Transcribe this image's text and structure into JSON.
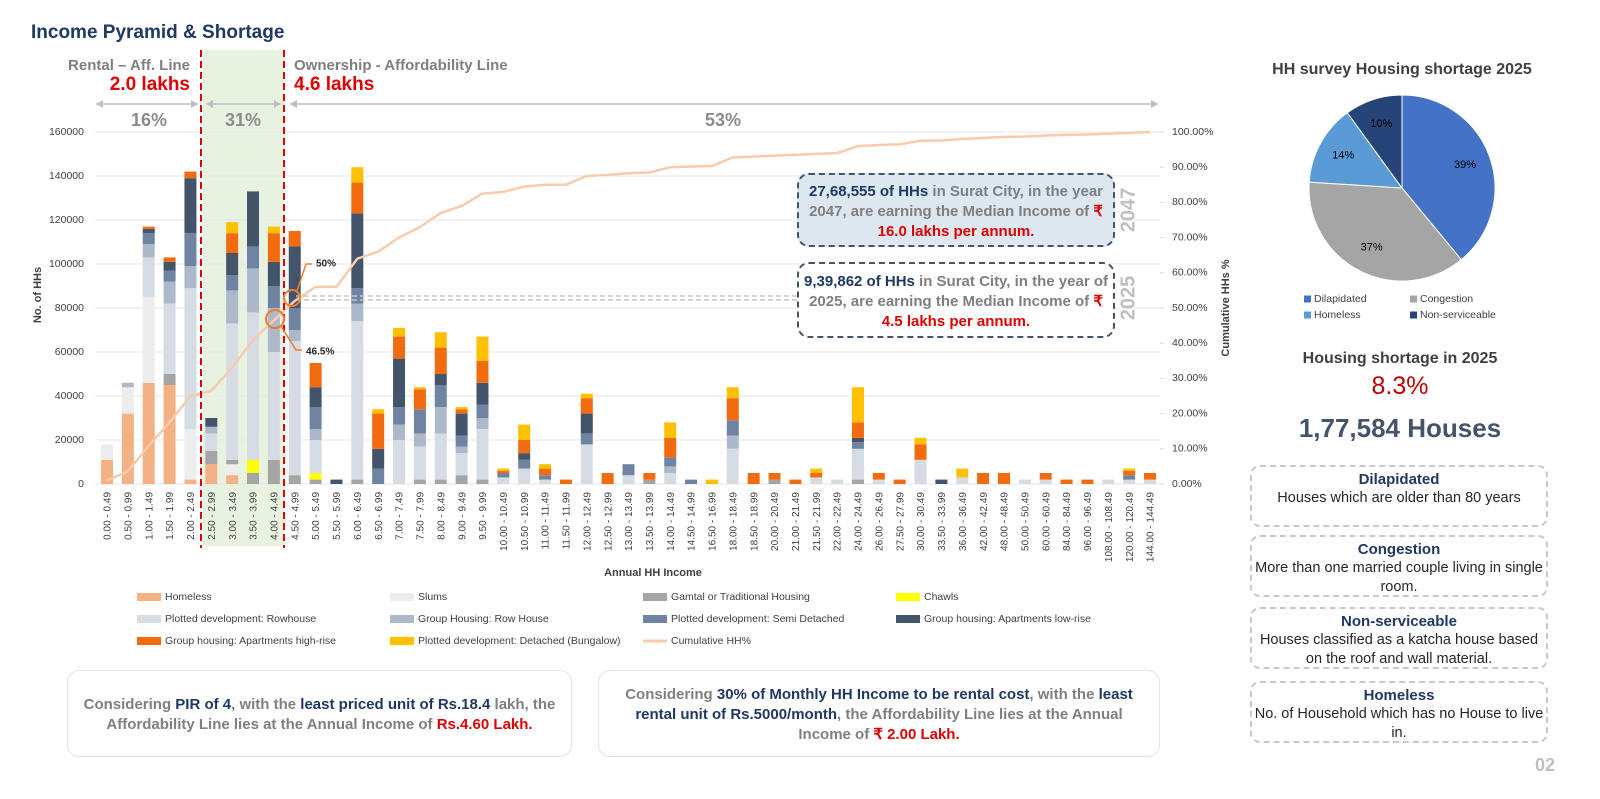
{
  "title": "Income Pyramid & Shortage",
  "chart_data": [
    {
      "type": "bar",
      "stacked": true,
      "xlabel": "Annual HH Income",
      "ylabel": "No. of HHs",
      "y2label": "Cumulative HHs %",
      "categories": [
        "0.00 - 0.49",
        "0.50 - 0.99",
        "1.00 - 1.49",
        "1.50 - 1.99",
        "2.00 - 2.49",
        "2.50 - 2.99",
        "3.00 - 3.49",
        "3.50 - 3.99",
        "4.00 - 4.49",
        "4.50 - 4.99",
        "5.00 - 5.49",
        "5.50 - 5.99",
        "6.00 - 6.49",
        "6.50 - 6.99",
        "7.00 - 7.49",
        "7.50 - 7.99",
        "8.00 - 8.49",
        "9.00 - 9.49",
        "9.50 - 9.99",
        "10.00 - 10.49",
        "10.50 - 10.99",
        "11.00 - 11.49",
        "11.50 - 11.99",
        "12.00 - 12.49",
        "12.50 - 12.99",
        "13.00 - 13.49",
        "13.50 - 13.99",
        "14.00 - 14.49",
        "14.50 - 14.99",
        "16.50 - 16.99",
        "18.00 - 18.49",
        "18.50 - 18.99",
        "20.00 - 20.49",
        "21.00 - 21.49",
        "21.50 - 21.99",
        "22.00 - 22.49",
        "24.00 - 24.49",
        "26.00 - 26.49",
        "27.50 - 27.99",
        "30.00 - 30.49",
        "33.50 - 33.99",
        "36.00 - 36.49",
        "42.00 - 42.49",
        "48.00 - 48.49",
        "50.00 - 50.49",
        "60.00 - 60.49",
        "84.00 - 84.49",
        "96.00 - 96.49",
        "108.00 - 108.49",
        "120.00 - 120.49",
        "144.00 - 144.49"
      ],
      "series": [
        {
          "name": "Homeless",
          "color": "#f4b183",
          "values": [
            11000,
            32000,
            46000,
            45000,
            2000,
            9000,
            4000,
            0,
            0,
            0,
            0,
            0,
            0,
            0,
            0,
            0,
            0,
            0,
            0,
            0,
            0,
            0,
            0,
            0,
            0,
            0,
            0,
            0,
            0,
            0,
            0,
            0,
            0,
            0,
            0,
            0,
            0,
            0,
            0,
            0,
            0,
            0,
            0,
            0,
            0,
            0,
            0,
            0,
            0,
            0,
            0
          ]
        },
        {
          "name": "Slums",
          "color": "#ededed",
          "values": [
            7000,
            12000,
            39000,
            0,
            23000,
            0,
            5000,
            0,
            0,
            0,
            0,
            0,
            0,
            0,
            0,
            0,
            0,
            0,
            0,
            0,
            0,
            0,
            0,
            0,
            0,
            0,
            0,
            0,
            0,
            0,
            0,
            0,
            0,
            0,
            0,
            0,
            0,
            0,
            0,
            0,
            0,
            0,
            0,
            0,
            0,
            0,
            0,
            0,
            0,
            0,
            0
          ]
        },
        {
          "name": "Gamtal or Traditional Housing",
          "color": "#a5a5a5",
          "values": [
            0,
            0,
            0,
            5000,
            0,
            6000,
            2000,
            5000,
            11000,
            4000,
            2000,
            0,
            2000,
            0,
            0,
            2000,
            2000,
            4000,
            2000,
            0,
            0,
            0,
            0,
            0,
            0,
            0,
            2000,
            0,
            0,
            0,
            0,
            0,
            2000,
            0,
            0,
            0,
            2000,
            0,
            0,
            0,
            0,
            0,
            0,
            0,
            0,
            0,
            0,
            0,
            0,
            0,
            0
          ]
        },
        {
          "name": "Chawls",
          "color": "#ffff00",
          "values": [
            0,
            0,
            0,
            0,
            0,
            0,
            0,
            6000,
            0,
            0,
            3000,
            0,
            0,
            0,
            0,
            0,
            0,
            0,
            0,
            0,
            0,
            0,
            0,
            0,
            0,
            0,
            0,
            0,
            0,
            0,
            0,
            0,
            0,
            0,
            0,
            0,
            0,
            0,
            0,
            0,
            0,
            0,
            0,
            0,
            0,
            0,
            0,
            0,
            0,
            0,
            0
          ]
        },
        {
          "name": "Plotted development: Rowhouse",
          "color": "#d6dce4",
          "values": [
            0,
            0,
            18000,
            32000,
            64000,
            8000,
            62000,
            67000,
            49000,
            61000,
            15000,
            0,
            72000,
            0,
            20000,
            15000,
            21000,
            10000,
            23000,
            3000,
            7000,
            2000,
            0,
            18000,
            0,
            4000,
            0,
            5000,
            0,
            0,
            16000,
            0,
            0,
            0,
            3000,
            2000,
            14000,
            2000,
            0,
            11000,
            0,
            3000,
            0,
            0,
            2000,
            2000,
            0,
            0,
            2000,
            2000,
            2000
          ]
        },
        {
          "name": "Group Housing: Row House",
          "color": "#adb9ca",
          "values": [
            0,
            2000,
            6000,
            10000,
            10000,
            3000,
            15000,
            20000,
            20000,
            5000,
            5000,
            0,
            8000,
            0,
            7000,
            6000,
            12000,
            3000,
            5000,
            0,
            0,
            0,
            0,
            0,
            0,
            0,
            0,
            3000,
            0,
            0,
            6000,
            0,
            0,
            0,
            0,
            0,
            0,
            0,
            0,
            0,
            0,
            0,
            0,
            0,
            0,
            0,
            0,
            0,
            0,
            0,
            0
          ]
        },
        {
          "name": "Plotted development: Semi Detached",
          "color": "#6f84a3",
          "values": [
            0,
            0,
            5000,
            5000,
            15000,
            0,
            7000,
            10000,
            10000,
            10000,
            10000,
            0,
            7000,
            7000,
            8000,
            11000,
            10000,
            5000,
            6000,
            2000,
            4000,
            2000,
            0,
            5000,
            0,
            5000,
            0,
            4000,
            2000,
            0,
            7000,
            0,
            0,
            0,
            0,
            0,
            3000,
            0,
            0,
            0,
            0,
            0,
            0,
            0,
            0,
            0,
            0,
            0,
            0,
            2000,
            0
          ]
        },
        {
          "name": "Group housing: Apartments low-rise",
          "color": "#44546a",
          "values": [
            0,
            0,
            2000,
            4000,
            25000,
            4000,
            10000,
            25000,
            11000,
            28000,
            9000,
            2000,
            34000,
            9000,
            22000,
            0,
            5000,
            10000,
            10000,
            0,
            3000,
            0,
            0,
            9000,
            0,
            0,
            0,
            0,
            0,
            0,
            0,
            0,
            0,
            0,
            0,
            0,
            2000,
            0,
            0,
            0,
            2000,
            0,
            0,
            0,
            0,
            0,
            0,
            0,
            0,
            0,
            0
          ]
        },
        {
          "name": "Group housing: Apartments high-rise",
          "color": "#f26b0f",
          "values": [
            0,
            0,
            1000,
            2000,
            3000,
            0,
            9000,
            0,
            13000,
            7000,
            11000,
            0,
            14000,
            16000,
            10000,
            9000,
            12000,
            2000,
            10000,
            1000,
            6000,
            3000,
            2000,
            7000,
            5000,
            0,
            3000,
            9000,
            0,
            0,
            10000,
            5000,
            3000,
            2000,
            2000,
            0,
            7000,
            3000,
            2000,
            7000,
            0,
            0,
            5000,
            5000,
            0,
            3000,
            2000,
            2000,
            0,
            2000,
            3000
          ]
        },
        {
          "name": "Plotted development: Detached (Bungalow)",
          "color": "#ffc000",
          "values": [
            0,
            0,
            0,
            0,
            0,
            0,
            5000,
            0,
            3000,
            0,
            0,
            0,
            7000,
            2000,
            4000,
            1000,
            7000,
            1000,
            11000,
            1000,
            7000,
            2000,
            0,
            2000,
            0,
            0,
            0,
            7000,
            0,
            2000,
            5000,
            0,
            0,
            0,
            2000,
            0,
            16000,
            0,
            0,
            3000,
            0,
            4000,
            0,
            0,
            0,
            0,
            0,
            0,
            0,
            1000,
            0
          ]
        },
        {
          "name": "Cumulative HH%",
          "color": "#f8cbad",
          "axis": "y2",
          "type": "line",
          "values": [
            1,
            3.6,
            10.9,
            17.5,
            25,
            26.5,
            33,
            41,
            46.5,
            52,
            56,
            56,
            64,
            66,
            70,
            73,
            77,
            79,
            82.5,
            83,
            84.5,
            85,
            85,
            87.5,
            87.8,
            88.3,
            88.5,
            90,
            90.2,
            90.3,
            92.8,
            93,
            93.3,
            93.5,
            93.8,
            94,
            96,
            96.3,
            96.5,
            97.5,
            97.6,
            98,
            98.3,
            98.6,
            98.7,
            99,
            99.2,
            99.3,
            99.5,
            99.8,
            100
          ]
        }
      ],
      "ylim": [
        0,
        160000
      ],
      "yticks": [
        0,
        20000,
        40000,
        60000,
        80000,
        100000,
        120000,
        140000,
        160000
      ],
      "y2lim": [
        0,
        100
      ],
      "y2ticks": [
        {
          "value": 0,
          "label": "0.00%"
        },
        {
          "value": 10,
          "label": "10.00%"
        },
        {
          "value": 20,
          "label": "20.00%"
        },
        {
          "value": 30,
          "label": "30.00%"
        },
        {
          "value": 40,
          "label": "40.00%"
        },
        {
          "value": 50,
          "label": "50.00%"
        },
        {
          "value": 60,
          "label": "60.00%"
        },
        {
          "value": 70,
          "label": "70.00%"
        },
        {
          "value": 80,
          "label": "80.00%"
        },
        {
          "value": 90,
          "label": "90.00%"
        },
        {
          "value": 100,
          "label": "100.00%"
        }
      ],
      "grid": true,
      "legend": "bottom",
      "annotations": [
        "Rental – Aff. Line",
        "2.0 lakhs",
        "Ownership - Affordability Line",
        "4.6 lakhs",
        "16%",
        "31%",
        "53%",
        "50%",
        "46.5%",
        "2047",
        "2025"
      ],
      "callouts": [
        {
          "parts": [
            "27,68,555 of HHs",
            " in Surat City, in the year 2047, are earning the Median Income of ",
            "₹ 16.0 lakhs per annum."
          ]
        },
        {
          "parts": [
            "9,39,862 of HHs",
            " in Surat City, in the year of 2025, are earning the Median Income of ",
            "₹ 4.5 lakhs per annum."
          ]
        }
      ]
    },
    {
      "type": "pie",
      "title": "HH survey Housing shortage 2025",
      "categories": [
        "Dilapidated",
        "Congestion",
        "Homeless",
        "Non-serviceable"
      ],
      "values": [
        39,
        37,
        14,
        10
      ],
      "value_labels": [
        "39%",
        "37%",
        "14%",
        "10%"
      ],
      "colors": [
        "#4472c4",
        "#a5a5a5",
        "#5b9bd5",
        "#264478"
      ],
      "legend": "bottom"
    }
  ],
  "shortage": {
    "title": "Housing shortage in 2025",
    "percent": "8.3%",
    "houses": "1,77,584 Houses"
  },
  "definitions": [
    {
      "title": "Dilapidated",
      "text": "Houses which are older than 80 years"
    },
    {
      "title": "Congestion",
      "text": "More than one married couple living in single room."
    },
    {
      "title": "Non-serviceable",
      "text": "Houses classified as a katcha house based on the roof and wall material."
    },
    {
      "title": "Homeless",
      "text": "No. of Household which has no House to live in."
    }
  ],
  "notes": [
    {
      "parts": [
        "Considering ",
        "PIR of 4",
        ", with the ",
        "least priced unit of Rs.18.4",
        " lakh, the Affordability Line lies at the Annual Income of ",
        "Rs.4.60 Lakh."
      ]
    },
    {
      "parts": [
        "Considering ",
        "30% of Monthly HH Income to be rental cost",
        ", with the ",
        "least rental unit of Rs.5000/month",
        ", the Affordability Line lies at the Annual Income of ",
        "₹ 2.00 Lakh."
      ]
    }
  ],
  "page_number": "02"
}
